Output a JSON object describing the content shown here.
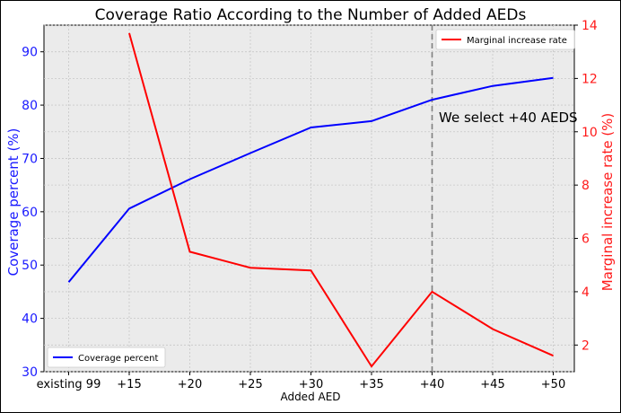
{
  "chart_data": {
    "type": "line",
    "title": "Coverage Ratio According to the Number of Added AEDs",
    "xlabel": "Added AED",
    "ylabel_left": "Coverage percent (%)",
    "ylabel_right": "Marginal increase rate (%)",
    "categories": [
      "existing 99",
      "+15",
      "+20",
      "+25",
      "+30",
      "+35",
      "+40",
      "+45",
      "+50"
    ],
    "ylim_left": [
      30,
      95
    ],
    "ylim_right": [
      1,
      14
    ],
    "yticks_left": [
      "30",
      "40",
      "50",
      "60",
      "70",
      "80",
      "90"
    ],
    "yticks_right": [
      "2",
      "4",
      "6",
      "8",
      "10",
      "12",
      "14"
    ],
    "grid": true,
    "series": [
      {
        "name": "Coverage percent",
        "axis": "left",
        "color": "#0000ff",
        "values": [
          46.8,
          60.6,
          66.1,
          71.0,
          75.8,
          77.0,
          81.0,
          83.6,
          85.1
        ]
      },
      {
        "name": "Marginal increase rate",
        "axis": "right",
        "color": "#ff0000",
        "values": [
          null,
          13.7,
          5.5,
          4.9,
          4.8,
          1.2,
          4.0,
          2.6,
          1.6
        ]
      }
    ],
    "legend_left": {
      "label": "Coverage percent",
      "placement": "lower-left"
    },
    "legend_right": {
      "label": "Marginal increase rate",
      "placement": "upper-right"
    },
    "vline": {
      "category": "+40",
      "style": "dashed",
      "color": "#808080"
    },
    "annotation": "We select +40 AEDS"
  }
}
